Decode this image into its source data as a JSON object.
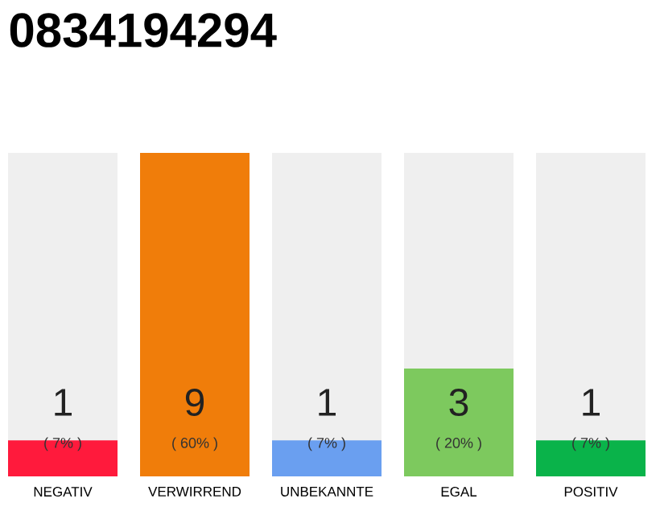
{
  "chart_data": {
    "type": "bar",
    "title": "0834194294",
    "categories": [
      "NEGATIV",
      "VERWIRREND",
      "UNBEKANNTE",
      "EGAL",
      "POSITIV"
    ],
    "values": [
      1,
      9,
      1,
      3,
      1
    ],
    "colors": [
      "#ff1a3c",
      "#f07d0a",
      "#6a9ff0",
      "#7dc95e",
      "#0ab34a"
    ],
    "ylim": [
      0,
      9
    ],
    "data_labels": true,
    "tick_labels": "x",
    "annotations": [
      "( 7% )",
      "( 60% )",
      "( 7% )",
      "( 20% )",
      "( 7% )"
    ]
  }
}
